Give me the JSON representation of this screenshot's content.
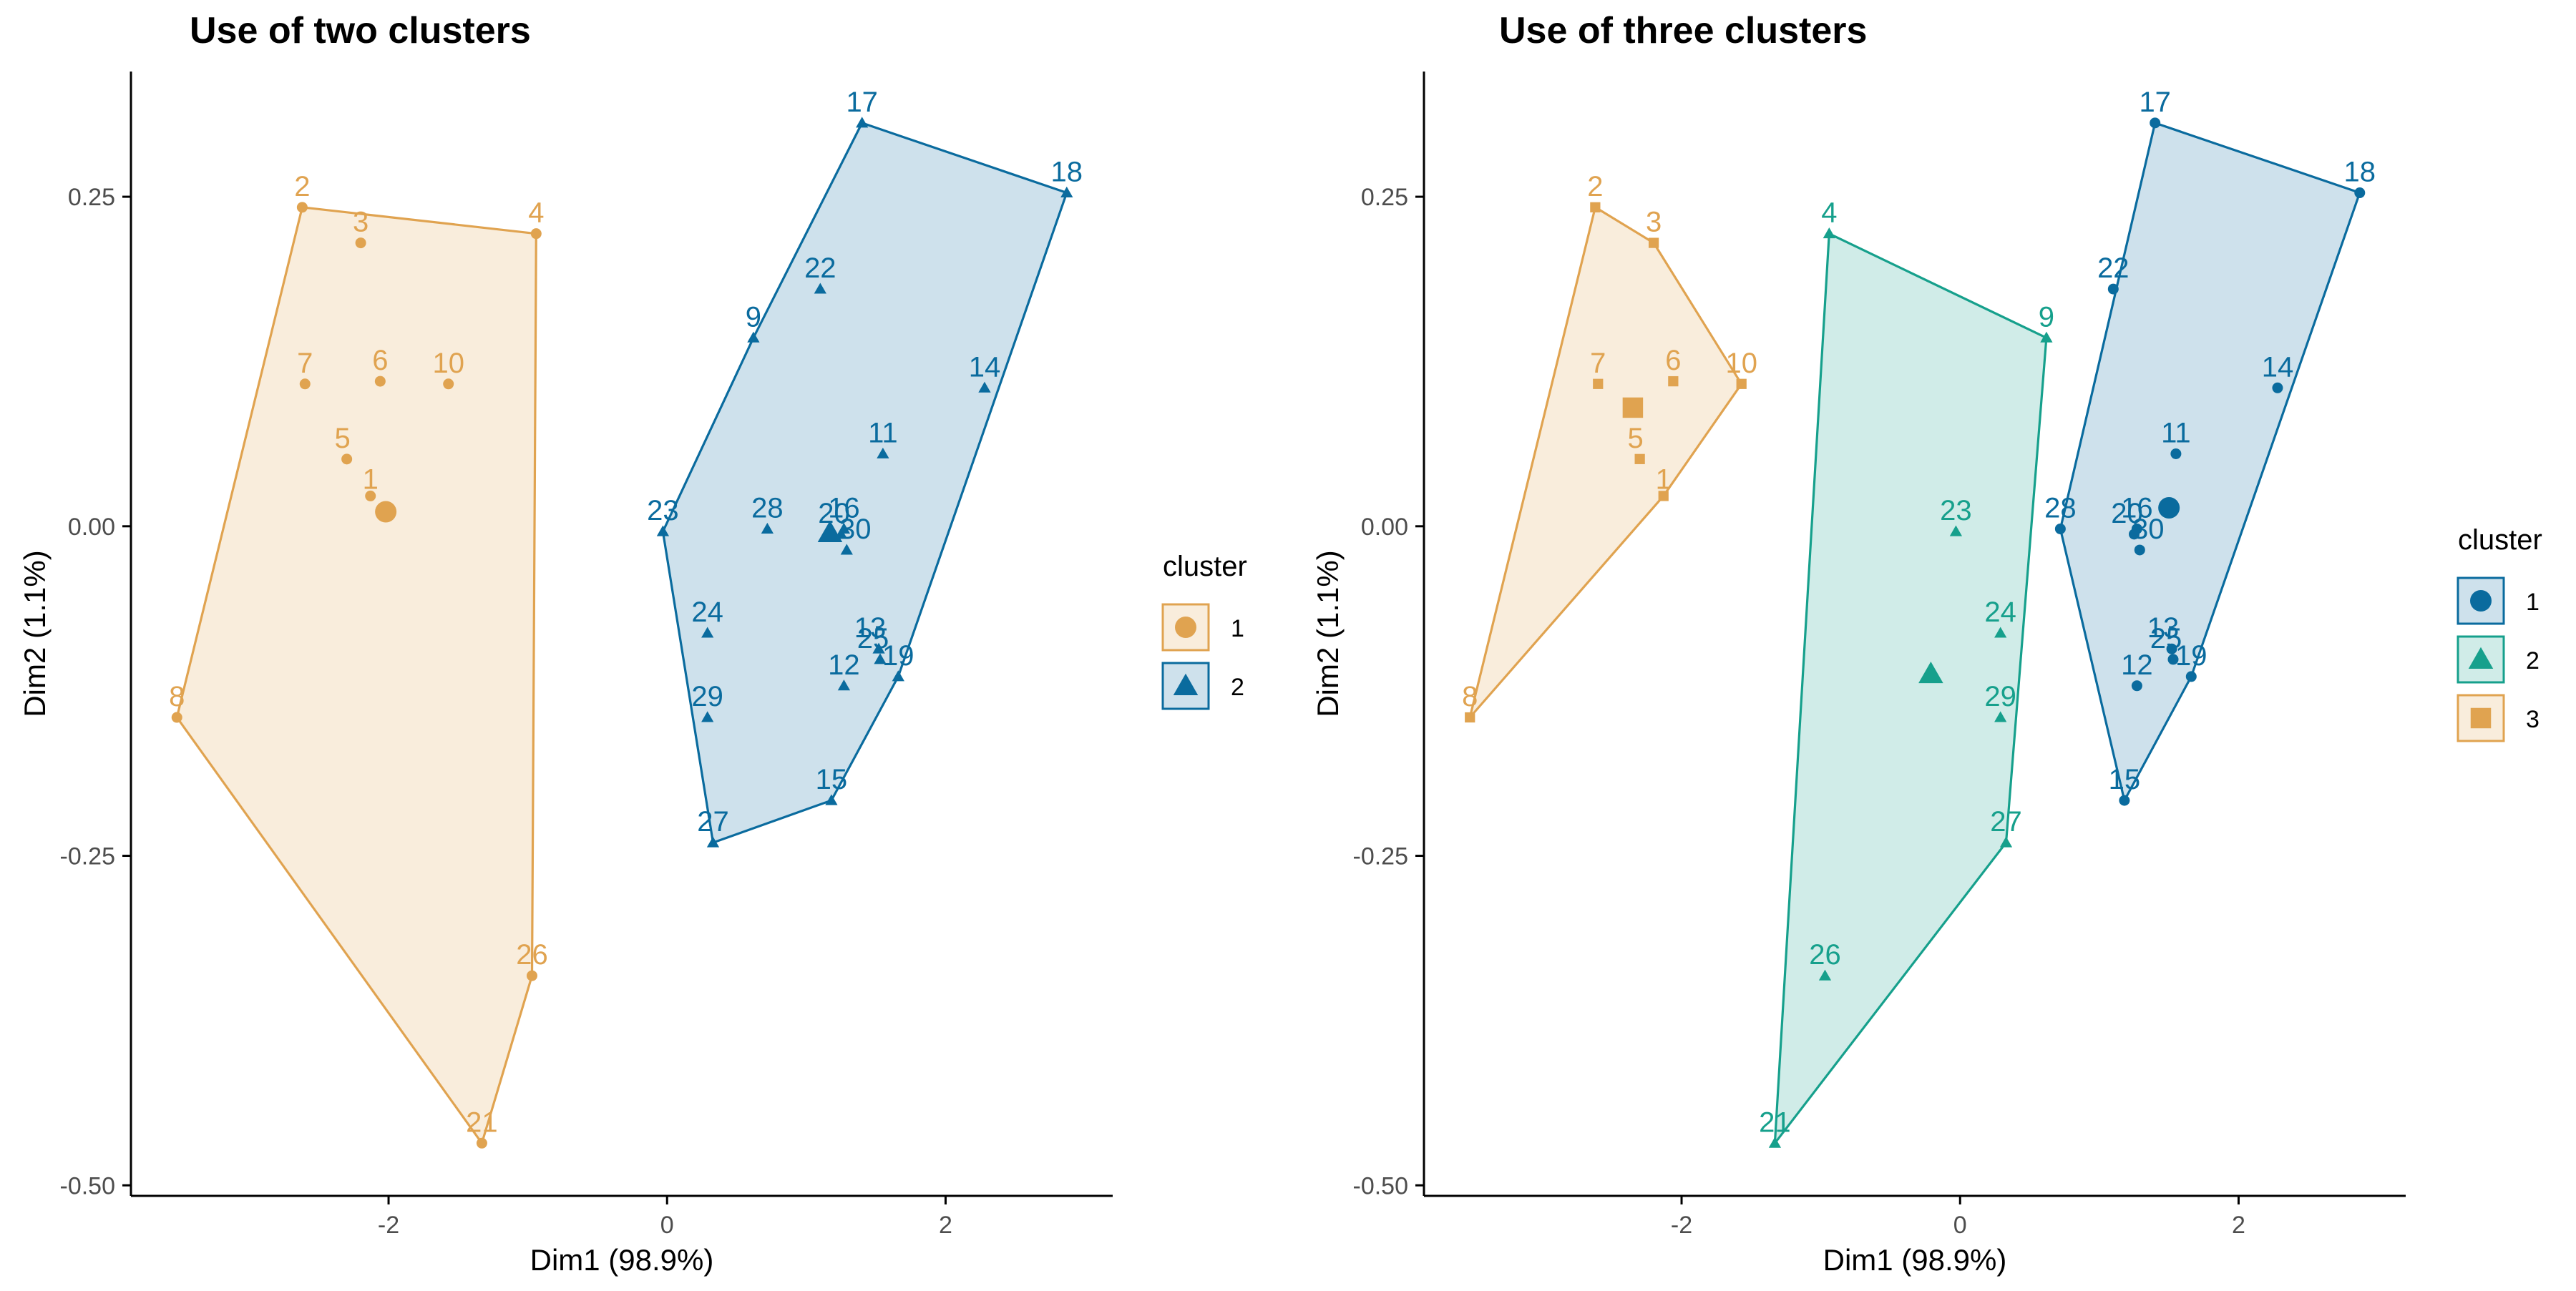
{
  "colors": {
    "cluster_orange": "#E0A350",
    "cluster_blue": "#0A6B9E",
    "cluster_teal": "#16A08C",
    "axis": "#000000",
    "tick_text": "#4D4D4D"
  },
  "chart_data": [
    {
      "type": "scatter",
      "title": "Use of two clusters",
      "xlabel": "Dim1 (98.9%)",
      "ylabel": "Dim2 (1.1%)",
      "xlim": [
        -3.85,
        3.2
      ],
      "ylim": [
        -0.508,
        0.345
      ],
      "x_ticks": [
        -2,
        0,
        2
      ],
      "x_tick_labels": [
        "-2",
        "0",
        "2"
      ],
      "y_ticks": [
        0.25,
        0.0,
        -0.25,
        -0.5
      ],
      "y_tick_labels": [
        "0.25",
        "0.00",
        "-0.25",
        "-0.50"
      ],
      "grid": false,
      "legend": {
        "title": "cluster",
        "position": "right",
        "entries": [
          "1",
          "2"
        ]
      },
      "clusters": [
        {
          "name": "1",
          "color": "#E0A350",
          "shape": "circle",
          "centroid": [
            -2.02,
            0.011
          ],
          "hull": [
            "2",
            "4",
            "26",
            "21",
            "8"
          ],
          "points": [
            {
              "label": "1",
              "x": -2.13,
              "y": 0.023
            },
            {
              "label": "2",
              "x": -2.62,
              "y": 0.242
            },
            {
              "label": "3",
              "x": -2.2,
              "y": 0.215
            },
            {
              "label": "4",
              "x": -0.94,
              "y": 0.222
            },
            {
              "label": "5",
              "x": -2.3,
              "y": 0.051
            },
            {
              "label": "6",
              "x": -2.06,
              "y": 0.11
            },
            {
              "label": "7",
              "x": -2.6,
              "y": 0.108
            },
            {
              "label": "8",
              "x": -3.52,
              "y": -0.145
            },
            {
              "label": "10",
              "x": -1.57,
              "y": 0.108
            },
            {
              "label": "21",
              "x": -1.33,
              "y": -0.468
            },
            {
              "label": "26",
              "x": -0.97,
              "y": -0.341
            }
          ]
        },
        {
          "name": "2",
          "color": "#0A6B9E",
          "shape": "triangle",
          "centroid": [
            1.17,
            -0.005
          ],
          "hull": [
            "17",
            "18",
            "19",
            "15",
            "27",
            "23",
            "9"
          ],
          "points": [
            {
              "label": "9",
              "x": 0.62,
              "y": 0.143
            },
            {
              "label": "11",
              "x": 1.55,
              "y": 0.055
            },
            {
              "label": "12",
              "x": 1.27,
              "y": -0.121
            },
            {
              "label": "13",
              "x": 1.52,
              "y": -0.093
            },
            {
              "label": "14",
              "x": 2.28,
              "y": 0.105
            },
            {
              "label": "15",
              "x": 1.18,
              "y": -0.208
            },
            {
              "label": "16",
              "x": 1.27,
              "y": -0.002
            },
            {
              "label": "17",
              "x": 1.4,
              "y": 0.306
            },
            {
              "label": "18",
              "x": 2.87,
              "y": 0.253
            },
            {
              "label": "19",
              "x": 1.66,
              "y": -0.114
            },
            {
              "label": "20",
              "x": 1.25,
              "y": -0.006
            },
            {
              "label": "22",
              "x": 1.1,
              "y": 0.18
            },
            {
              "label": "23",
              "x": -0.03,
              "y": -0.004
            },
            {
              "label": "24",
              "x": 0.29,
              "y": -0.081
            },
            {
              "label": "25",
              "x": 1.53,
              "y": -0.101
            },
            {
              "label": "27",
              "x": 0.33,
              "y": -0.24
            },
            {
              "label": "28",
              "x": 0.72,
              "y": -0.002
            },
            {
              "label": "29",
              "x": 0.29,
              "y": -0.145
            },
            {
              "label": "30",
              "x": 1.29,
              "y": -0.018
            }
          ]
        }
      ]
    },
    {
      "type": "scatter",
      "title": "Use of three clusters",
      "xlabel": "Dim1 (98.9%)",
      "ylabel": "Dim2 (1.1%)",
      "xlim": [
        -3.85,
        3.2
      ],
      "ylim": [
        -0.508,
        0.345
      ],
      "x_ticks": [
        -2,
        0,
        2
      ],
      "x_tick_labels": [
        "-2",
        "0",
        "2"
      ],
      "y_ticks": [
        0.25,
        0.0,
        -0.25,
        -0.5
      ],
      "y_tick_labels": [
        "0.25",
        "0.00",
        "-0.25",
        "-0.50"
      ],
      "grid": false,
      "legend": {
        "title": "cluster",
        "position": "right",
        "entries": [
          "1",
          "2",
          "3"
        ]
      },
      "clusters": [
        {
          "name": "1",
          "color": "#0A6B9E",
          "shape": "circle",
          "centroid": [
            1.5,
            0.014
          ],
          "hull": [
            "17",
            "18",
            "19",
            "15",
            "28"
          ],
          "points": [
            {
              "label": "11",
              "x": 1.55,
              "y": 0.055
            },
            {
              "label": "12",
              "x": 1.27,
              "y": -0.121
            },
            {
              "label": "13",
              "x": 1.52,
              "y": -0.093
            },
            {
              "label": "14",
              "x": 2.28,
              "y": 0.105
            },
            {
              "label": "15",
              "x": 1.18,
              "y": -0.208
            },
            {
              "label": "16",
              "x": 1.27,
              "y": -0.002
            },
            {
              "label": "17",
              "x": 1.4,
              "y": 0.306
            },
            {
              "label": "18",
              "x": 2.87,
              "y": 0.253
            },
            {
              "label": "19",
              "x": 1.66,
              "y": -0.114
            },
            {
              "label": "20",
              "x": 1.25,
              "y": -0.006
            },
            {
              "label": "22",
              "x": 1.1,
              "y": 0.18
            },
            {
              "label": "25",
              "x": 1.53,
              "y": -0.101
            },
            {
              "label": "28",
              "x": 0.72,
              "y": -0.002
            },
            {
              "label": "30",
              "x": 1.29,
              "y": -0.018
            }
          ]
        },
        {
          "name": "2",
          "color": "#16A08C",
          "shape": "triangle",
          "centroid": [
            -0.21,
            -0.112
          ],
          "hull": [
            "4",
            "9",
            "27",
            "21"
          ],
          "points": [
            {
              "label": "4",
              "x": -0.94,
              "y": 0.222
            },
            {
              "label": "9",
              "x": 0.62,
              "y": 0.143
            },
            {
              "label": "21",
              "x": -1.33,
              "y": -0.468
            },
            {
              "label": "23",
              "x": -0.03,
              "y": -0.004
            },
            {
              "label": "24",
              "x": 0.29,
              "y": -0.081
            },
            {
              "label": "26",
              "x": -0.97,
              "y": -0.341
            },
            {
              "label": "27",
              "x": 0.33,
              "y": -0.24
            },
            {
              "label": "29",
              "x": 0.29,
              "y": -0.145
            }
          ]
        },
        {
          "name": "3",
          "color": "#E0A350",
          "shape": "square",
          "centroid": [
            -2.35,
            0.09
          ],
          "hull": [
            "2",
            "3",
            "10",
            "1",
            "8"
          ],
          "points": [
            {
              "label": "1",
              "x": -2.13,
              "y": 0.023
            },
            {
              "label": "2",
              "x": -2.62,
              "y": 0.242
            },
            {
              "label": "3",
              "x": -2.2,
              "y": 0.215
            },
            {
              "label": "5",
              "x": -2.3,
              "y": 0.051
            },
            {
              "label": "6",
              "x": -2.06,
              "y": 0.11
            },
            {
              "label": "7",
              "x": -2.6,
              "y": 0.108
            },
            {
              "label": "8",
              "x": -3.52,
              "y": -0.145
            },
            {
              "label": "10",
              "x": -1.57,
              "y": 0.108
            }
          ]
        }
      ]
    }
  ]
}
